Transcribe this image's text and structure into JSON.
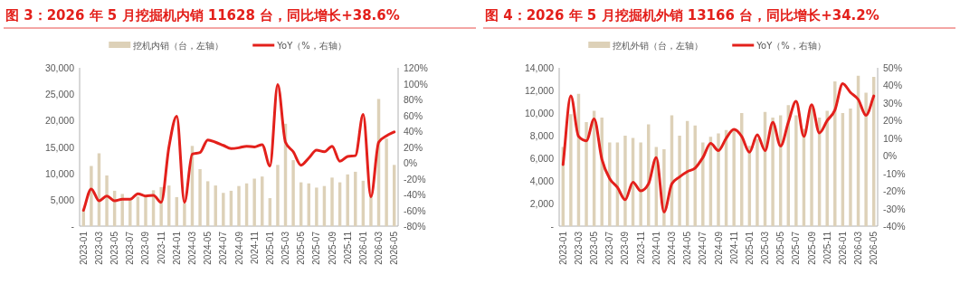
{
  "chart_data": [
    {
      "type": "bar",
      "title": "图 3：2026 年 5 月挖掘机内销 11628 台，同比增长+38.6%",
      "legend": "top",
      "grid": false,
      "categories": [
        "2023-01",
        null,
        "2023-03",
        null,
        "2023-05",
        null,
        "2023-07",
        null,
        "2023-09",
        null,
        "2023-11",
        null,
        "2024-01",
        null,
        "2024-03",
        null,
        "2024-05",
        null,
        "2024-07",
        null,
        "2024-09",
        null,
        "2024-11",
        null,
        "2025-01",
        null,
        "2025-03",
        null,
        "2025-05",
        null,
        "2025-07",
        null,
        "2025-09",
        null,
        "2025-11",
        null,
        "2026-01",
        null,
        "2026-03",
        null,
        "2026-05"
      ],
      "series": [
        {
          "name": "挖机内销（台，左轴）",
          "color": "#ddd1b8",
          "values": [
            3000,
            11400,
            13800,
            9600,
            6700,
            6100,
            5100,
            5600,
            5700,
            6800,
            7400,
            7700,
            5500,
            4300,
            15200,
            10800,
            8500,
            7700,
            6300,
            6700,
            7600,
            8100,
            9000,
            9400,
            5300,
            11600,
            19400,
            12500,
            8300,
            8100,
            7300,
            7600,
            9200,
            8300,
            9800,
            10300,
            8600,
            6000,
            24100,
            16600,
            11600
          ]
        },
        {
          "name": "YoY（%，右轴）",
          "type": "line",
          "axis": "y2",
          "color": "#e3201b",
          "values": [
            -60,
            -33,
            -48,
            -42,
            -48,
            -46,
            -46,
            -39,
            -42,
            -41,
            -50,
            20,
            59,
            -50,
            11,
            13,
            29,
            26,
            22,
            18,
            19,
            21,
            20,
            23,
            -4,
            99,
            26,
            14,
            -3,
            6,
            16,
            14,
            21,
            2,
            8,
            9,
            61,
            -43,
            26,
            34,
            39
          ]
        }
      ],
      "ylim": [
        0,
        30000
      ],
      "yticks": [
        {
          "value": 0,
          "label": "-"
        },
        {
          "value": 5000,
          "label": "5,000"
        },
        {
          "value": 10000,
          "label": "10,000"
        },
        {
          "value": 15000,
          "label": "15,000"
        },
        {
          "value": 20000,
          "label": "20,000"
        },
        {
          "value": 25000,
          "label": "25,000"
        },
        {
          "value": 30000,
          "label": "30,000"
        }
      ],
      "y2lim": [
        -80,
        120
      ],
      "y2ticks": [
        {
          "value": -80,
          "label": "-80%"
        },
        {
          "value": -60,
          "label": "-60%"
        },
        {
          "value": -40,
          "label": "-40%"
        },
        {
          "value": -20,
          "label": "-20%"
        },
        {
          "value": 0,
          "label": "0%"
        },
        {
          "value": 20,
          "label": "20%"
        },
        {
          "value": 40,
          "label": "40%"
        },
        {
          "value": 60,
          "label": "60%"
        },
        {
          "value": 80,
          "label": "80%"
        },
        {
          "value": 100,
          "label": "100%"
        },
        {
          "value": 120,
          "label": "120%"
        }
      ]
    },
    {
      "type": "bar",
      "title": "图 4：2026 年 5 月挖掘机外销 13166 台，同比增长+34.2%",
      "legend": "top",
      "grid": false,
      "categories": [
        "2023-01",
        null,
        "2023-03",
        null,
        "2023-05",
        null,
        "2023-07",
        null,
        "2023-09",
        null,
        "2023-11",
        null,
        "2024-01",
        null,
        "2024-03",
        null,
        "2024-05",
        null,
        "2024-07",
        null,
        "2024-09",
        null,
        "2024-11",
        null,
        "2025-01",
        null,
        "2025-03",
        null,
        "2025-05",
        null,
        "2025-07",
        null,
        "2025-09",
        null,
        "2025-11",
        null,
        "2026-01",
        null,
        "2026-03",
        null,
        "2026-05"
      ],
      "series": [
        {
          "name": "挖机外销（台，左轴）",
          "color": "#ddd1b8",
          "values": [
            7000,
            9900,
            11700,
            9200,
            10200,
            9600,
            7400,
            7400,
            8000,
            7800,
            7400,
            9000,
            7000,
            6800,
            9800,
            8000,
            9300,
            8900,
            7400,
            7900,
            8200,
            8500,
            8600,
            10000,
            7100,
            7700,
            10100,
            9600,
            9800,
            10700,
            9800,
            8600,
            10500,
            9600,
            10200,
            12800,
            10000,
            10400,
            13300,
            11800,
            13200
          ]
        },
        {
          "name": "YoY（%，右轴）",
          "type": "line",
          "axis": "y2",
          "color": "#e3201b",
          "values": [
            -5,
            34,
            11,
            8.5,
            21,
            -2,
            -13,
            -18,
            -25,
            -15,
            -20,
            -16,
            -1,
            -32,
            -16,
            -12,
            -9,
            -7,
            -1,
            7,
            3,
            10,
            15,
            11,
            2,
            12,
            3,
            19,
            5.5,
            19,
            31,
            11,
            29,
            13,
            20,
            26,
            41,
            36,
            32,
            23,
            34
          ]
        }
      ],
      "ylim": [
        0,
        14000
      ],
      "yticks": [
        {
          "value": 0,
          "label": "-"
        },
        {
          "value": 2000,
          "label": "2,000"
        },
        {
          "value": 4000,
          "label": "4,000"
        },
        {
          "value": 6000,
          "label": "6,000"
        },
        {
          "value": 8000,
          "label": "8,000"
        },
        {
          "value": 10000,
          "label": "10,000"
        },
        {
          "value": 12000,
          "label": "12,000"
        },
        {
          "value": 14000,
          "label": "14,000"
        }
      ],
      "y2lim": [
        -40,
        50
      ],
      "y2ticks": [
        {
          "value": -40,
          "label": "-40%"
        },
        {
          "value": -30,
          "label": "-30%"
        },
        {
          "value": -20,
          "label": "-20%"
        },
        {
          "value": -10,
          "label": "-10%"
        },
        {
          "value": 0,
          "label": "0%"
        },
        {
          "value": 10,
          "label": "10%"
        },
        {
          "value": 20,
          "label": "20%"
        },
        {
          "value": 30,
          "label": "30%"
        },
        {
          "value": 40,
          "label": "40%"
        },
        {
          "value": 50,
          "label": "50%"
        }
      ]
    }
  ]
}
